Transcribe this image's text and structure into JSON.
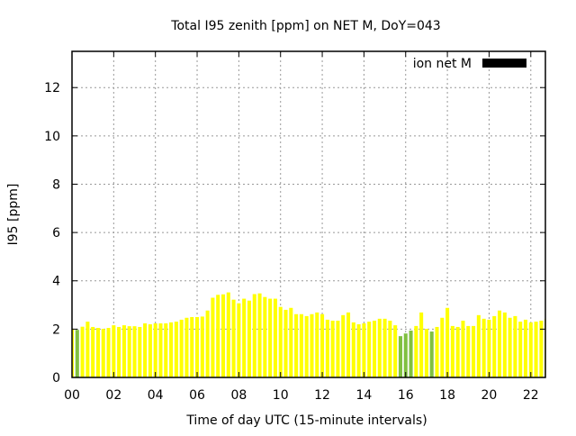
{
  "chart_data": {
    "type": "bar",
    "title": "Total I95 zenith [ppm] on NET M, DoY=043",
    "xlabel": "Time of day UTC (15-minute intervals)",
    "ylabel": "I95 [ppm]",
    "xlim": [
      0,
      22.7
    ],
    "ylim": [
      0,
      13.5
    ],
    "grid": true,
    "legend": {
      "placement": "top-right",
      "entries": [
        {
          "label": "ion net M",
          "color": "#000000"
        }
      ]
    },
    "x_ticks": [
      {
        "v": 0,
        "label": "00"
      },
      {
        "v": 2,
        "label": "02"
      },
      {
        "v": 4,
        "label": "04"
      },
      {
        "v": 6,
        "label": "06"
      },
      {
        "v": 8,
        "label": "08"
      },
      {
        "v": 10,
        "label": "10"
      },
      {
        "v": 12,
        "label": "12"
      },
      {
        "v": 14,
        "label": "14"
      },
      {
        "v": 16,
        "label": "16"
      },
      {
        "v": 18,
        "label": "18"
      },
      {
        "v": 20,
        "label": "20"
      },
      {
        "v": 22,
        "label": "22"
      }
    ],
    "y_ticks": [
      {
        "v": 0,
        "label": "0"
      },
      {
        "v": 2,
        "label": "2"
      },
      {
        "v": 4,
        "label": "4"
      },
      {
        "v": 6,
        "label": "6"
      },
      {
        "v": 8,
        "label": "8"
      },
      {
        "v": 10,
        "label": "10"
      },
      {
        "v": 12,
        "label": "12"
      }
    ],
    "interval_hours": 0.25,
    "colors": {
      "normal": "#ffff00",
      "flagged": "#80c040"
    },
    "values": [
      2.0,
      1.97,
      2.1,
      2.31,
      2.09,
      2.05,
      2.01,
      2.05,
      2.16,
      2.09,
      2.16,
      2.12,
      2.12,
      2.09,
      2.24,
      2.2,
      2.24,
      2.24,
      2.24,
      2.28,
      2.31,
      2.39,
      2.47,
      2.5,
      2.5,
      2.52,
      2.77,
      3.3,
      3.42,
      3.44,
      3.52,
      3.22,
      3.07,
      3.26,
      3.18,
      3.45,
      3.48,
      3.33,
      3.26,
      3.26,
      2.92,
      2.8,
      2.88,
      2.62,
      2.62,
      2.54,
      2.62,
      2.69,
      2.62,
      2.39,
      2.35,
      2.35,
      2.58,
      2.69,
      2.28,
      2.2,
      2.24,
      2.31,
      2.35,
      2.43,
      2.43,
      2.35,
      2.16,
      1.71,
      1.82,
      1.94,
      2.13,
      2.69,
      2.01,
      1.9,
      2.09,
      2.47,
      2.88,
      2.13,
      2.09,
      2.35,
      2.13,
      2.13,
      2.58,
      2.43,
      2.39,
      2.54,
      2.77,
      2.69,
      2.47,
      2.54,
      2.31,
      2.39,
      2.28,
      2.31,
      2.35,
      2.43
    ],
    "flagged": [
      1,
      63,
      64,
      65,
      69
    ]
  }
}
